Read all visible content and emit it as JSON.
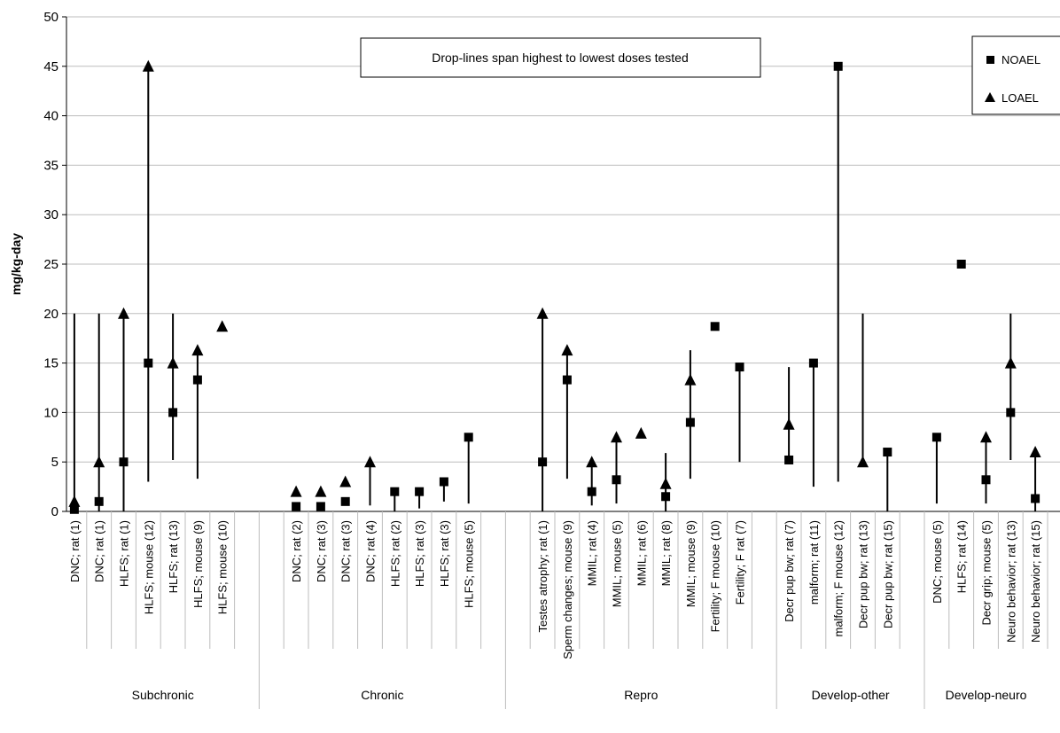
{
  "chart_data": {
    "type": "scatter",
    "title": "",
    "ylabel": "mg/kg-day",
    "xlabel": "",
    "ylim": [
      0,
      50
    ],
    "yticks": [
      0,
      5,
      10,
      15,
      20,
      25,
      30,
      35,
      40,
      45,
      50
    ],
    "grid": true,
    "annotation": "Drop-lines span highest to lowest doses tested",
    "legend": {
      "position": "top-right",
      "entries": [
        {
          "name": "NOAEL",
          "marker": "square"
        },
        {
          "name": "LOAEL",
          "marker": "triangle"
        }
      ]
    },
    "groups": [
      {
        "name": "Subchronic",
        "slots": 8
      },
      {
        "name": "Chronic",
        "slots": 10
      },
      {
        "name": "Repro",
        "slots": 11
      },
      {
        "name": "Develop-other",
        "slots": 6
      },
      {
        "name": "Develop-neuro",
        "slots": 5
      }
    ],
    "categories": [
      "DNC; rat (1)",
      "DNC; rat (1)",
      "HLFS; rat (1)",
      "HLFS; mouse (12)",
      "HLFS; rat (13)",
      "HLFS; mouse (9)",
      "HLFS; mouse (10)",
      "",
      "",
      "DNC; rat (2)",
      "DNC; rat (3)",
      "DNC; rat (3)",
      "DNC; rat (4)",
      "HLFS; rat (2)",
      "HLFS; rat (3)",
      "HLFS; rat (3)",
      "HLFS; mouse (5)",
      "",
      "",
      "Testes atrophy; rat (1)",
      "Sperm changes; mouse (9)",
      "MMIL; rat (4)",
      "MMIL; mouse (5)",
      "MMIL; rat (6)",
      "MMIL; rat (8)",
      "MMIL; mouse (9)",
      "Fertility; F mouse (10)",
      "Fertility; F rat (7)",
      "",
      "Decr pup bw; rat (7)",
      "malform; rat (11)",
      "malform; F mouse (12)",
      "Decr pup bw; rat (13)",
      "Decr pup bw; rat (15)",
      "",
      "DNC; mouse (5)",
      "HLFS; rat (14)",
      "Decr grip; mouse (5)",
      "Neuro behavior; rat (13)",
      "Neuro behavior; rat (15)"
    ],
    "series": [
      {
        "name": "NOAEL",
        "values": [
          0.2,
          1,
          5,
          15,
          10,
          13.3,
          null,
          null,
          null,
          0.5,
          0.5,
          1,
          null,
          2,
          2,
          3,
          7.5,
          null,
          null,
          5,
          13.3,
          2,
          3.2,
          null,
          1.5,
          9,
          18.7,
          14.6,
          null,
          5.2,
          15,
          45,
          null,
          6,
          null,
          7.5,
          25,
          3.2,
          10,
          1.3
        ]
      },
      {
        "name": "LOAEL",
        "values": [
          1,
          5,
          20,
          45,
          15,
          16.3,
          18.7,
          null,
          null,
          2,
          2,
          3,
          5,
          null,
          null,
          null,
          null,
          null,
          null,
          20,
          16.3,
          5,
          7.5,
          7.9,
          2.8,
          13.3,
          null,
          null,
          null,
          8.8,
          null,
          null,
          5,
          null,
          null,
          null,
          null,
          7.5,
          15,
          6
        ]
      }
    ],
    "droplines": [
      [
        0,
        20
      ],
      [
        0,
        20
      ],
      [
        0,
        20
      ],
      [
        3,
        45
      ],
      [
        5.2,
        20
      ],
      [
        3.3,
        16.3
      ],
      null,
      null,
      null,
      null,
      null,
      null,
      [
        0.6,
        5
      ],
      [
        0,
        2
      ],
      [
        0.3,
        2
      ],
      [
        1,
        3
      ],
      [
        0.8,
        7.5
      ],
      null,
      null,
      [
        0,
        20
      ],
      [
        3.3,
        16.3
      ],
      [
        0.6,
        5
      ],
      [
        0.8,
        7.5
      ],
      null,
      [
        0,
        5.9
      ],
      [
        3.3,
        16.3
      ],
      null,
      [
        5,
        14.6
      ],
      null,
      [
        5.2,
        14.6
      ],
      [
        2.5,
        15
      ],
      [
        3,
        45
      ],
      [
        5,
        20
      ],
      [
        0,
        6
      ],
      null,
      [
        0.8,
        7.5
      ],
      null,
      [
        0.8,
        7.5
      ],
      [
        5.2,
        20
      ],
      [
        0,
        6
      ]
    ]
  }
}
